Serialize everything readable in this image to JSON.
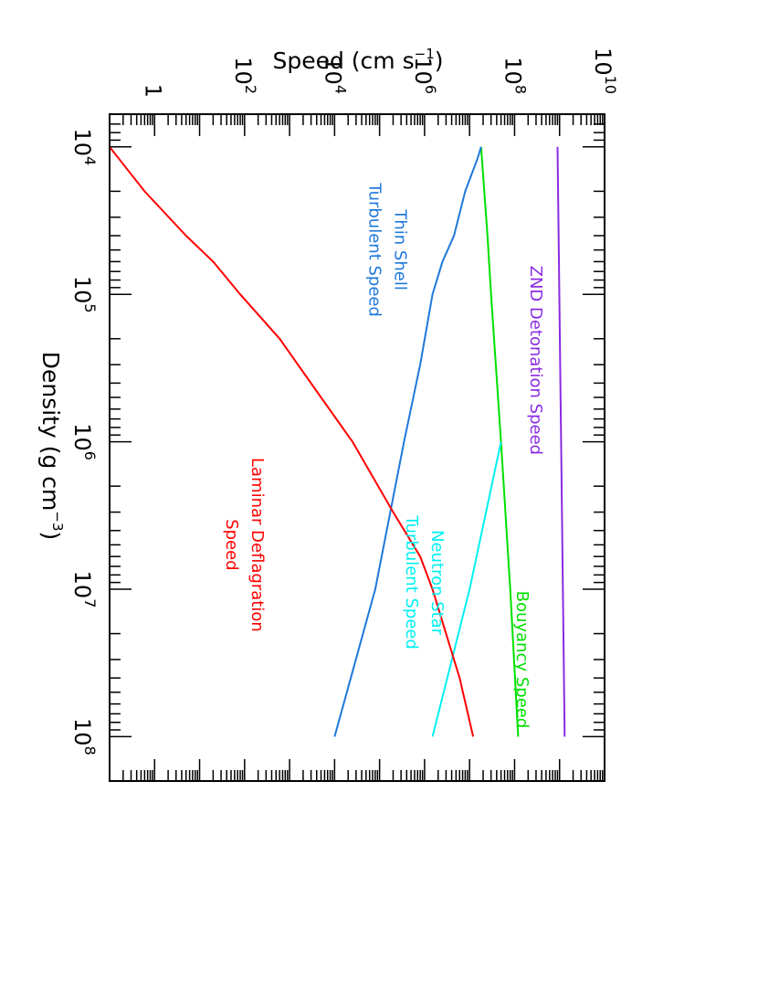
{
  "chart_data": {
    "type": "line",
    "orientation": "rotated-landscape",
    "xlabel": "Density (g cm",
    "xlabel_exponent": "−3",
    "xlabel_suffix": ")",
    "ylabel": "Speed (cm s",
    "ylabel_exponent": "−1",
    "ylabel_suffix": ")",
    "x_scale": "log",
    "y_scale": "log",
    "xlim": [
      6000,
      200000000
    ],
    "ylim": [
      0.1,
      10000000000
    ],
    "grid": false,
    "x_ticks": [
      {
        "value": 10000,
        "base": "10",
        "exp": "4"
      },
      {
        "value": 100000,
        "base": "10",
        "exp": "5"
      },
      {
        "value": 1000000,
        "base": "10",
        "exp": "6"
      },
      {
        "value": 10000000,
        "base": "10",
        "exp": "7"
      },
      {
        "value": 100000000,
        "base": "10",
        "exp": "8"
      }
    ],
    "y_ticks": [
      {
        "value": 1,
        "base": "1",
        "exp": ""
      },
      {
        "value": 100,
        "base": "10",
        "exp": "2"
      },
      {
        "value": 10000,
        "base": "10",
        "exp": "4"
      },
      {
        "value": 1000000,
        "base": "10",
        "exp": "6"
      },
      {
        "value": 100000000,
        "base": "10",
        "exp": "8"
      },
      {
        "value": 10000000000,
        "base": "10",
        "exp": "10"
      }
    ],
    "series": [
      {
        "key": "znd",
        "color": "#8a2be2",
        "label_lines": [
          "ZND Detonation Speed"
        ],
        "x": [
          10000,
          100000000
        ],
        "y": [
          900000000,
          1300000000
        ]
      },
      {
        "key": "buoyancy",
        "color": "#00e000",
        "label_lines": [
          "Bouyancy Speed"
        ],
        "x": [
          10000,
          40000,
          100000,
          1000000,
          10000000,
          100000000
        ],
        "y": [
          18000000,
          25000000,
          30000000,
          50000000,
          80000000,
          120000000
        ]
      },
      {
        "key": "neutron-star",
        "color": "#00f0f0",
        "label_lines": [
          "Neutron Star",
          "Turbulent Speed"
        ],
        "x": [
          1000000,
          10000000,
          100000000
        ],
        "y": [
          50000000,
          10000000,
          1500000
        ]
      },
      {
        "key": "thin-shell",
        "color": "#1e78dc",
        "label_lines": [
          "Thin Shell",
          "Turbulent Speed"
        ],
        "x": [
          10000,
          12000,
          20000,
          40000,
          60000,
          100000,
          300000,
          1000000,
          10000000,
          100000000
        ],
        "y": [
          18000000,
          15000000,
          8000000,
          4500000,
          2500000,
          1500000,
          800000,
          350000,
          80000,
          10000
        ]
      },
      {
        "key": "laminar",
        "color": "#ff0000",
        "label_lines": [
          "Laminar Deflagration",
          "Speed"
        ],
        "x": [
          10000,
          20000,
          40000,
          60000,
          100000,
          200000,
          500000,
          1000000,
          3000000,
          6000000,
          10000000,
          20000000,
          40000000,
          100000000
        ],
        "y": [
          0.1,
          0.6,
          5,
          20,
          80,
          600,
          5000,
          25000,
          200000,
          800000,
          1500000,
          3000000,
          6000000,
          12000000
        ]
      }
    ]
  }
}
